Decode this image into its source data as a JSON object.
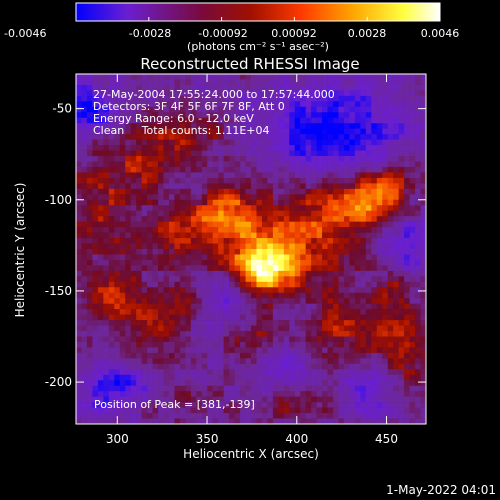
{
  "colorbar": {
    "ticks": [
      "-0.0046",
      "-0.0028",
      "-0.00092",
      "0.00092",
      "0.0028",
      "0.0046"
    ],
    "unit_label": "(photons cm⁻² s⁻¹ asec⁻²)",
    "stops": [
      "#0000ff",
      "#6a1fd0",
      "#7a0a3a",
      "#a01000",
      "#ff3a00",
      "#ffa500",
      "#ffff40",
      "#ffffff"
    ]
  },
  "title": "Reconstructed RHESSI Image",
  "annotations": {
    "line1": "27-May-2004 17:55:24.000 to 17:57:44.000",
    "line2": "Detectors: 3F 4F 5F 6F 7F 8F, Att 0",
    "line3": "Energy Range: 6.0 - 12.0 keV",
    "line4": "Clean     Total counts: 1.11E+04",
    "peak": "Position of Peak = [381,-139]"
  },
  "footer": {
    "timestamp": "1-May-2022 04:01"
  },
  "chart_data": {
    "type": "heatmap",
    "title": "Reconstructed RHESSI Image",
    "xlabel": "Heliocentric X (arcsec)",
    "ylabel": "Heliocentric Y (arcsec)",
    "xlim": [
      277,
      472
    ],
    "ylim": [
      -223,
      -31
    ],
    "xticks": [
      300,
      350,
      400,
      450
    ],
    "yticks": [
      -50,
      -100,
      -150,
      -200
    ],
    "colorbar_range": [
      -0.0046,
      0.0046
    ],
    "peak_position": [
      381,
      -139
    ],
    "blobs": [
      {
        "x": 381,
        "y": -139,
        "sx": 14,
        "sy": 10,
        "v": 0.005
      },
      {
        "x": 395,
        "y": -120,
        "sx": 30,
        "sy": 16,
        "v": 0.0026
      },
      {
        "x": 360,
        "y": -108,
        "sx": 12,
        "sy": 10,
        "v": 0.003
      },
      {
        "x": 433,
        "y": -102,
        "sx": 18,
        "sy": 10,
        "v": 0.0028
      },
      {
        "x": 450,
        "y": -92,
        "sx": 10,
        "sy": 9,
        "v": 0.0022
      },
      {
        "x": 330,
        "y": -118,
        "sx": 12,
        "sy": 9,
        "v": 0.0022
      },
      {
        "x": 292,
        "y": -100,
        "sx": 14,
        "sy": 22,
        "v": 0.0018
      },
      {
        "x": 318,
        "y": -78,
        "sx": 12,
        "sy": 12,
        "v": 0.0022
      },
      {
        "x": 345,
        "y": -64,
        "sx": 14,
        "sy": 8,
        "v": 0.0018
      },
      {
        "x": 293,
        "y": -152,
        "sx": 10,
        "sy": 12,
        "v": 0.002
      },
      {
        "x": 318,
        "y": -166,
        "sx": 12,
        "sy": 14,
        "v": 0.002
      },
      {
        "x": 340,
        "y": -154,
        "sx": 8,
        "sy": 8,
        "v": 0.0018
      },
      {
        "x": 378,
        "y": -176,
        "sx": 10,
        "sy": 7,
        "v": 0.0018
      },
      {
        "x": 425,
        "y": -170,
        "sx": 14,
        "sy": 16,
        "v": 0.002
      },
      {
        "x": 458,
        "y": -180,
        "sx": 10,
        "sy": 18,
        "v": 0.002
      },
      {
        "x": 455,
        "y": -150,
        "sx": 8,
        "sy": 10,
        "v": 0.0016
      },
      {
        "x": 400,
        "y": -214,
        "sx": 18,
        "sy": 6,
        "v": 0.0014
      },
      {
        "x": 333,
        "y": -210,
        "sx": 14,
        "sy": 7,
        "v": 0.0012
      },
      {
        "x": 305,
        "y": -215,
        "sx": 10,
        "sy": 6,
        "v": 0.0012
      }
    ],
    "negative_blobs": [
      {
        "x": 420,
        "y": -60,
        "sx": 28,
        "sy": 18,
        "v": -0.003
      },
      {
        "x": 300,
        "y": -205,
        "sx": 14,
        "sy": 10,
        "v": -0.003
      },
      {
        "x": 285,
        "y": -50,
        "sx": 10,
        "sy": 10,
        "v": -0.0026
      },
      {
        "x": 360,
        "y": -150,
        "sx": 10,
        "sy": 10,
        "v": -0.002
      },
      {
        "x": 460,
        "y": -125,
        "sx": 10,
        "sy": 14,
        "v": -0.0022
      },
      {
        "x": 395,
        "y": -190,
        "sx": 12,
        "sy": 8,
        "v": -0.0016
      },
      {
        "x": 440,
        "y": -205,
        "sx": 12,
        "sy": 10,
        "v": -0.0018
      }
    ]
  }
}
